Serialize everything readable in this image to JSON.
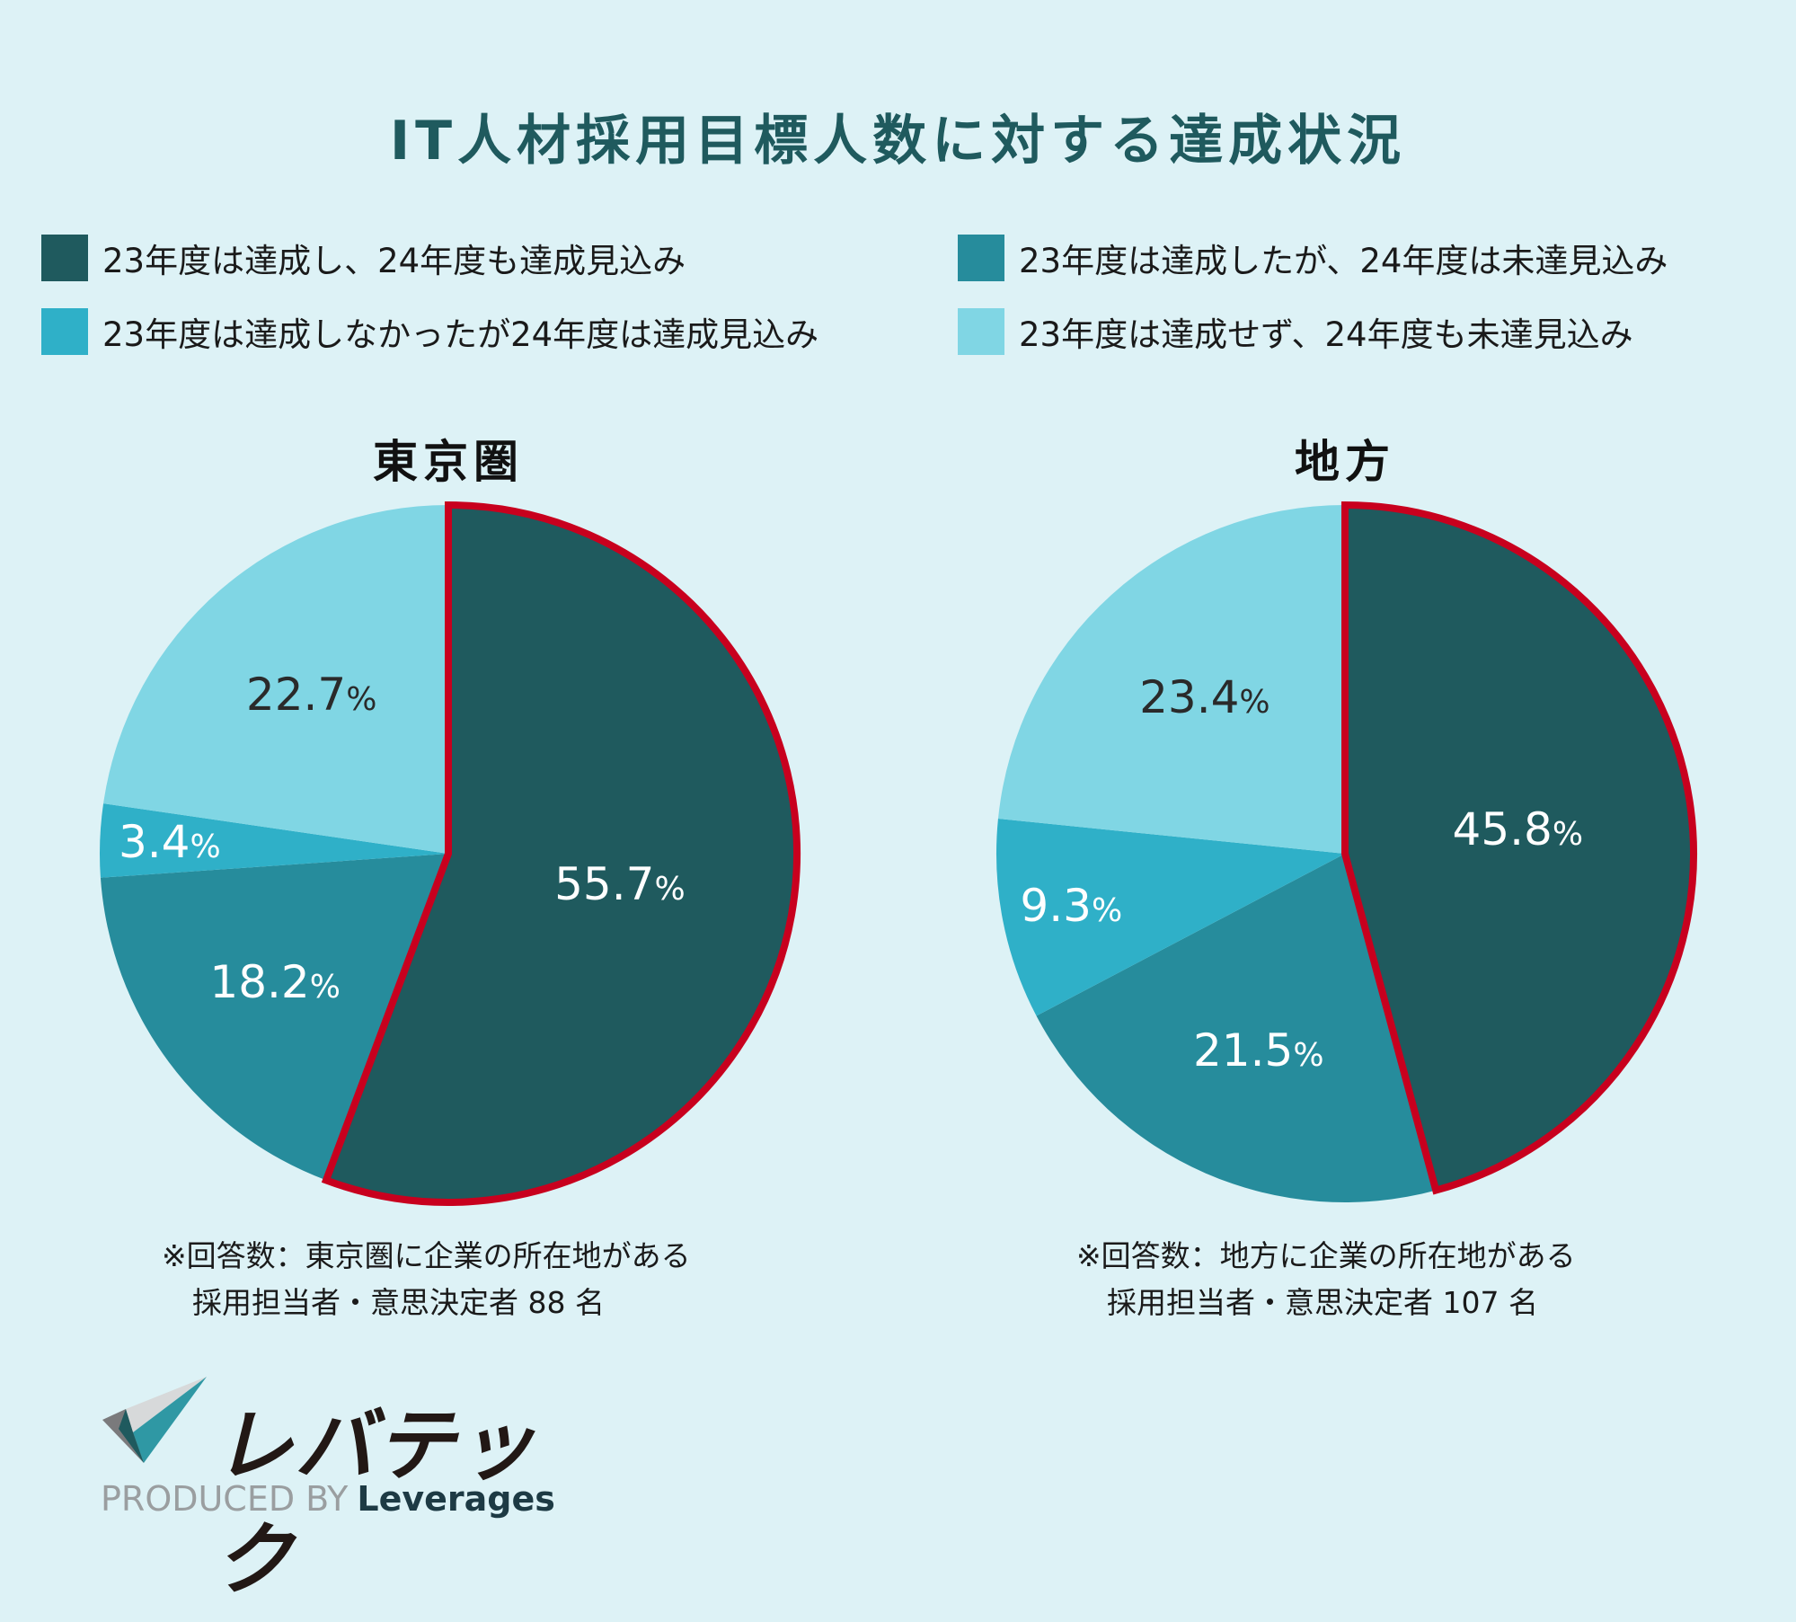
{
  "title": "IT人材採用目標人数に対する達成状況",
  "colors": {
    "background": "#DDF2F6",
    "achieved_both": "#1F5A5E",
    "achieved23_not24": "#268C9C",
    "not23_achieved24": "#2FB0C8",
    "not_both": "#80D6E4",
    "highlight_border": "#C8001E",
    "title": "#1F5A5E"
  },
  "legend": [
    {
      "label": "23年度は達成し、24年度も達成見込み",
      "color": "#1F5A5E"
    },
    {
      "label": "23年度は達成したが、24年度は未達見込み",
      "color": "#268C9C"
    },
    {
      "label": "23年度は達成しなかったが24年度は達成見込み",
      "color": "#2FB0C8"
    },
    {
      "label": "23年度は達成せず、24年度も未達見込み",
      "color": "#80D6E4"
    }
  ],
  "pies": [
    {
      "title": "東京圏",
      "labels": [
        "55.7",
        "18.2",
        "3.4",
        "22.7"
      ],
      "percent_sign": "%",
      "footnote_line1": "※回答数：東京圏に企業の所在地がある",
      "footnote_line2": "採用担当者・意思決定者 88 名"
    },
    {
      "title": "地方",
      "labels": [
        "45.8",
        "21.5",
        "9.3",
        "23.4"
      ],
      "percent_sign": "%",
      "footnote_line1": "※回答数：地方に企業の所在地がある",
      "footnote_line2": "採用担当者・意思決定者 107 名"
    }
  ],
  "logo": {
    "name": "レバテック",
    "produced_by": "PRODUCED BY",
    "company": "Leverages"
  },
  "chart_data": [
    {
      "type": "pie",
      "title": "東京圏",
      "categories": [
        "23年度は達成し、24年度も達成見込み",
        "23年度は達成したが、24年度は未達見込み",
        "23年度は達成しなかったが24年度は達成見込み",
        "23年度は達成せず、24年度も未達見込み"
      ],
      "values": [
        55.7,
        18.2,
        3.4,
        22.7
      ],
      "unit": "%",
      "highlighted": "23年度は達成し、24年度も達成見込み",
      "n": 88,
      "note": "※回答数：東京圏に企業の所在地がある 採用担当者・意思決定者 88 名"
    },
    {
      "type": "pie",
      "title": "地方",
      "categories": [
        "23年度は達成し、24年度も達成見込み",
        "23年度は達成したが、24年度は未達見込み",
        "23年度は達成しなかったが24年度は達成見込み",
        "23年度は達成せず、24年度も未達見込み"
      ],
      "values": [
        45.8,
        21.5,
        9.3,
        23.4
      ],
      "unit": "%",
      "highlighted": "23年度は達成し、24年度も達成見込み",
      "n": 107,
      "note": "※回答数：地方に企業の所在地がある 採用担当者・意思決定者 107 名"
    }
  ]
}
